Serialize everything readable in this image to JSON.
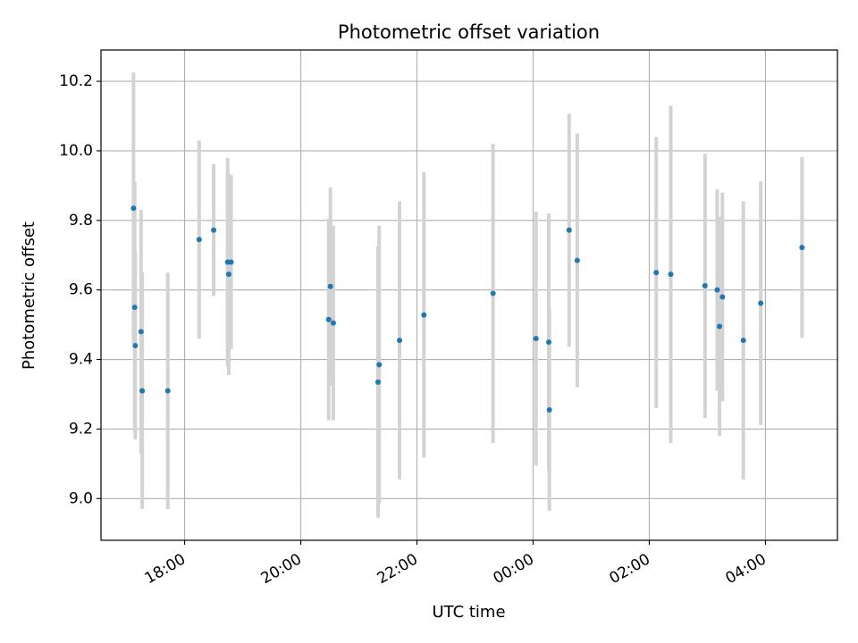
{
  "chart_data": {
    "type": "scatter",
    "title": "Photometric offset variation",
    "xlabel": "UTC time",
    "ylabel": "Photometric offset",
    "x_unit": "hours after 00:00 UTC of first night",
    "xlim": [
      16.56,
      29.24
    ],
    "ylim": [
      8.88,
      10.29
    ],
    "x_ticks": [
      {
        "value": 18,
        "label": "18:00"
      },
      {
        "value": 20,
        "label": "20:00"
      },
      {
        "value": 22,
        "label": "22:00"
      },
      {
        "value": 24,
        "label": "00:00"
      },
      {
        "value": 26,
        "label": "02:00"
      },
      {
        "value": 28,
        "label": "04:00"
      }
    ],
    "y_ticks": [
      {
        "value": 9.0,
        "label": "9.0"
      },
      {
        "value": 9.2,
        "label": "9.2"
      },
      {
        "value": 9.4,
        "label": "9.4"
      },
      {
        "value": 9.6,
        "label": "9.6"
      },
      {
        "value": 9.8,
        "label": "9.8"
      },
      {
        "value": 10.0,
        "label": "10.0"
      },
      {
        "value": 10.2,
        "label": "10.2"
      }
    ],
    "grid": true,
    "colors": {
      "point": "#1f77b4",
      "errorbar": "#d3d3d3",
      "grid": "#b0b0b0"
    },
    "points": [
      {
        "x": 17.12,
        "y": 9.835,
        "err": 0.39
      },
      {
        "x": 17.14,
        "y": 9.55,
        "err": 0.36
      },
      {
        "x": 17.15,
        "y": 9.44,
        "err": 0.27
      },
      {
        "x": 17.25,
        "y": 9.48,
        "err": 0.35
      },
      {
        "x": 17.27,
        "y": 9.31,
        "err": 0.34
      },
      {
        "x": 17.71,
        "y": 9.31,
        "err": 0.34
      },
      {
        "x": 18.25,
        "y": 9.745,
        "err": 0.285
      },
      {
        "x": 18.5,
        "y": 9.772,
        "err": 0.19
      },
      {
        "x": 18.74,
        "y": 9.68,
        "err": 0.3
      },
      {
        "x": 18.76,
        "y": 9.645,
        "err": 0.29
      },
      {
        "x": 18.8,
        "y": 9.68,
        "err": 0.25
      },
      {
        "x": 20.48,
        "y": 9.515,
        "err": 0.29
      },
      {
        "x": 20.51,
        "y": 9.61,
        "err": 0.285
      },
      {
        "x": 20.56,
        "y": 9.505,
        "err": 0.28
      },
      {
        "x": 21.33,
        "y": 9.335,
        "err": 0.39
      },
      {
        "x": 21.35,
        "y": 9.385,
        "err": 0.4
      },
      {
        "x": 21.7,
        "y": 9.455,
        "err": 0.4
      },
      {
        "x": 22.12,
        "y": 9.528,
        "err": 0.41
      },
      {
        "x": 23.31,
        "y": 9.59,
        "err": 0.43
      },
      {
        "x": 24.05,
        "y": 9.46,
        "err": 0.365
      },
      {
        "x": 24.27,
        "y": 9.45,
        "err": 0.37
      },
      {
        "x": 24.28,
        "y": 9.255,
        "err": 0.29
      },
      {
        "x": 24.62,
        "y": 9.772,
        "err": 0.335
      },
      {
        "x": 24.76,
        "y": 9.685,
        "err": 0.365
      },
      {
        "x": 26.12,
        "y": 9.65,
        "err": 0.39
      },
      {
        "x": 26.37,
        "y": 9.645,
        "err": 0.485
      },
      {
        "x": 26.96,
        "y": 9.612,
        "err": 0.38
      },
      {
        "x": 27.17,
        "y": 9.6,
        "err": 0.29
      },
      {
        "x": 27.21,
        "y": 9.495,
        "err": 0.315
      },
      {
        "x": 27.26,
        "y": 9.58,
        "err": 0.3
      },
      {
        "x": 27.62,
        "y": 9.455,
        "err": 0.4
      },
      {
        "x": 27.92,
        "y": 9.562,
        "err": 0.35
      },
      {
        "x": 28.63,
        "y": 9.722,
        "err": 0.26
      }
    ]
  }
}
